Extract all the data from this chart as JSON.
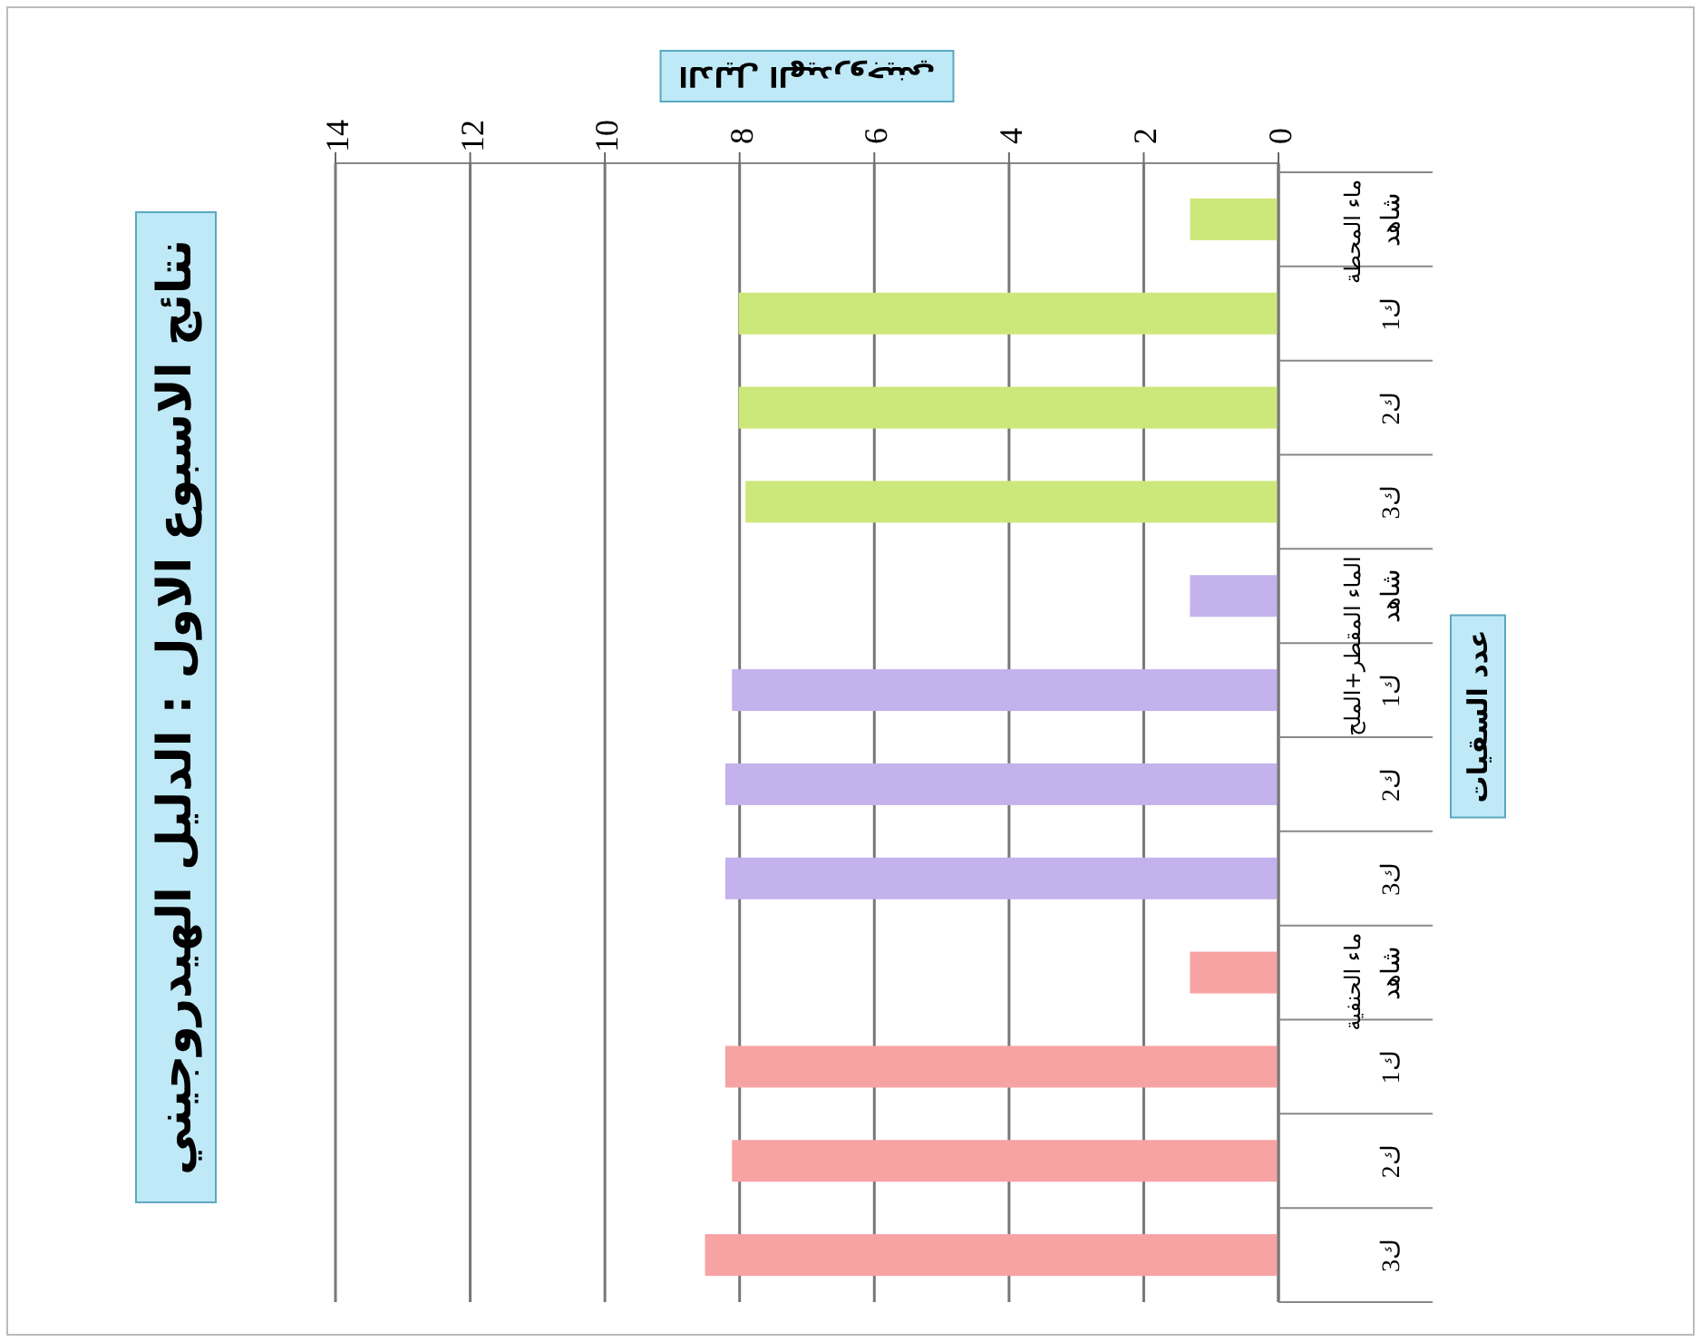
{
  "chart_data": {
    "type": "bar",
    "orientation": "horizontal",
    "title": "نتائج الاسبوع الاول : الدليل الهيدروجيني",
    "xlabel": "الدليل الهيدروجيني",
    "ylabel": "عدد السقيات",
    "categories": [
      "شاهد",
      "ك1",
      "ك2",
      "ك3",
      "شاهد",
      "ك1",
      "ك2",
      "ك3",
      "شاهد",
      "ك1",
      "ك2",
      "ك3"
    ],
    "values": [
      1.3,
      8.0,
      8.0,
      7.9,
      1.3,
      8.1,
      8.2,
      8.2,
      1.3,
      8.2,
      8.1,
      8.5
    ],
    "colors": [
      "#cde87a",
      "#cde87a",
      "#cde87a",
      "#cde87a",
      "#c3b2ec",
      "#c3b2ec",
      "#c3b2ec",
      "#c3b2ec",
      "#f7a3a3",
      "#f7a3a3",
      "#f7a3a3",
      "#f7a3a3"
    ],
    "xlim": [
      14,
      0
    ],
    "xticks": [
      0,
      2,
      4,
      6,
      8,
      10,
      12,
      14
    ],
    "grid": "x",
    "annotations": [
      "ماء المحطة",
      "الماء المقطر+الملح",
      "ماء الحنفية"
    ]
  }
}
